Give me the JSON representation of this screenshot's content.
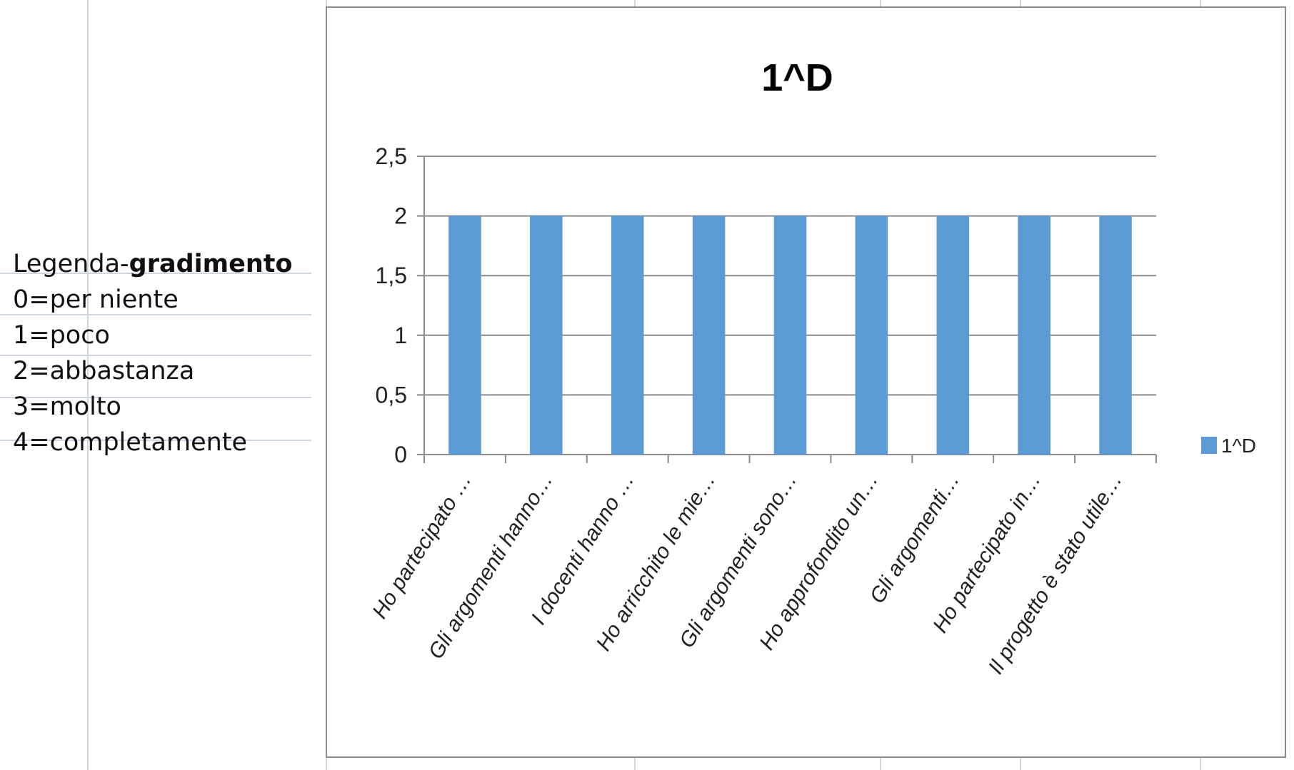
{
  "legenda": {
    "title_prefix": "Legenda-",
    "title_bold": "gradimento",
    "items": [
      "0=per niente",
      "1=poco",
      "2=abbastanza",
      "3=molto",
      "4=completamente"
    ]
  },
  "colors": {
    "bar": "#5b9bd5",
    "gridline": "#8c8c8c",
    "axis": "#8c8c8c"
  },
  "chart_data": {
    "type": "bar",
    "title": "1^D",
    "xlabel": "",
    "ylabel": "",
    "categories": [
      "Ho partecipato …",
      "Gli argomenti hanno…",
      "I docenti hanno …",
      "Ho arricchito le mie…",
      "Gli argomenti sono…",
      "Ho approfondito un…",
      "Gli argomenti…",
      "Ho partecipato in…",
      "Il progetto è stato utile…"
    ],
    "series": [
      {
        "name": "1^D",
        "values": [
          2,
          2,
          2,
          2,
          2,
          2,
          2,
          2,
          2
        ]
      }
    ],
    "ylim": [
      0,
      2.5
    ],
    "yticks": [
      "0",
      "0,5",
      "1",
      "1,5",
      "2",
      "2,5"
    ],
    "grid": true,
    "legend_position": "right"
  }
}
